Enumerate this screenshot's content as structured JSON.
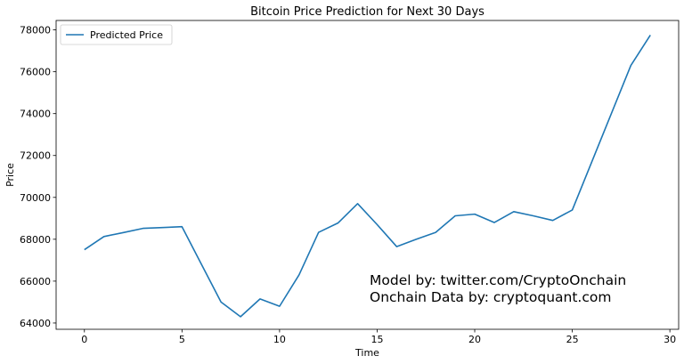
{
  "chart_data": {
    "type": "line",
    "title": "Bitcoin Price Prediction for Next 30 Days",
    "xlabel": "Time",
    "ylabel": "Price",
    "xlim": [
      -1.45,
      30.45
    ],
    "ylim": [
      63700,
      78450
    ],
    "xticks": [
      0,
      5,
      10,
      15,
      20,
      25,
      30
    ],
    "yticks": [
      64000,
      66000,
      68000,
      70000,
      72000,
      74000,
      76000,
      78000
    ],
    "grid": false,
    "legend_position": "top-left",
    "series": [
      {
        "name": "Predicted Price",
        "color": "#1f77b4",
        "x": [
          0,
          1,
          2,
          3,
          4,
          5,
          6,
          7,
          8,
          9,
          10,
          11,
          12,
          13,
          14,
          15,
          16,
          17,
          18,
          19,
          20,
          21,
          22,
          23,
          24,
          25,
          26,
          27,
          28,
          29
        ],
        "y": [
          67500,
          68130,
          68320,
          68520,
          68560,
          68600,
          66800,
          65000,
          64300,
          65150,
          64800,
          66300,
          68330,
          68780,
          69700,
          68700,
          67650,
          68000,
          68330,
          69120,
          69200,
          68800,
          69320,
          69120,
          68900,
          69400,
          71700,
          74000,
          76300,
          77750
        ]
      }
    ],
    "annotations": [
      "Model by: twitter.com/CryptoOnchain",
      "Onchain Data by: cryptoquant.com"
    ]
  }
}
